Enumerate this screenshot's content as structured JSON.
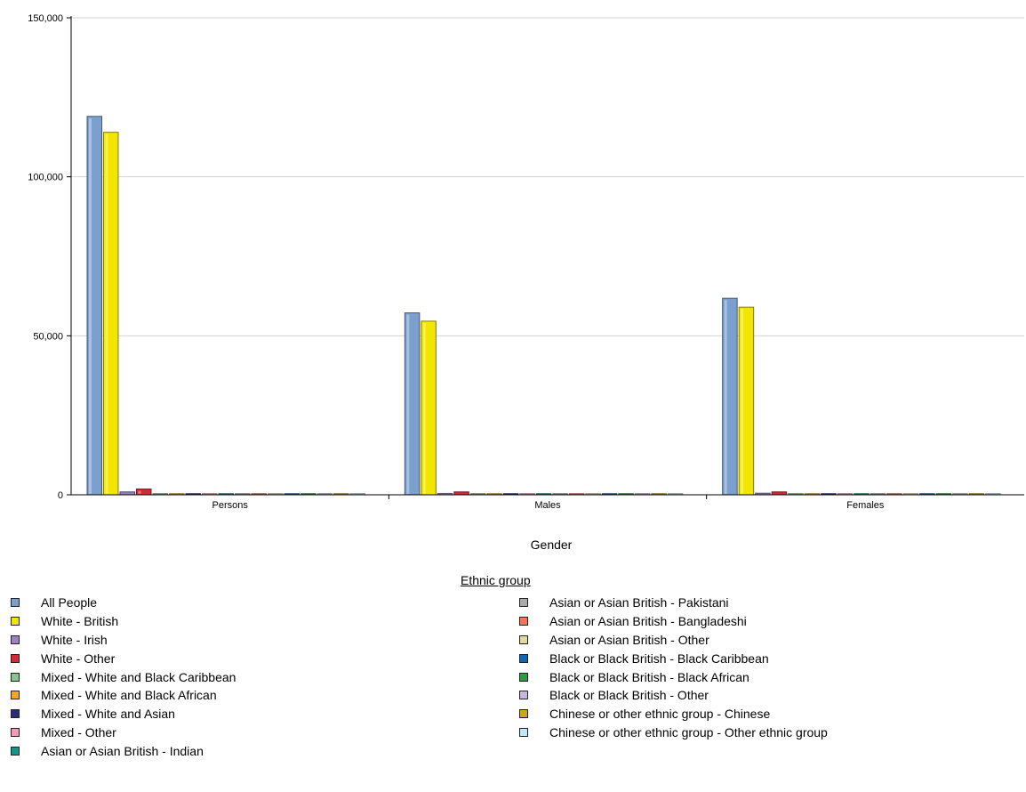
{
  "chart_data": {
    "type": "bar",
    "xlabel": "Gender",
    "ylabel": "",
    "ylim": [
      0,
      150000
    ],
    "yticks": [
      0,
      50000,
      100000,
      150000
    ],
    "ytick_labels": [
      "0",
      "50,000",
      "100,000",
      "150,000"
    ],
    "grid": true,
    "legend_title": "Ethnic group",
    "legend_position": "bottom",
    "categories": [
      "Persons",
      "Males",
      "Females"
    ],
    "series": [
      {
        "name": "All People",
        "color": "#7b9fce",
        "values": [
          119000,
          57200,
          61800
        ]
      },
      {
        "name": "White - British",
        "color": "#f2e600",
        "values": [
          114000,
          54600,
          59000
        ]
      },
      {
        "name": "White - Irish",
        "color": "#9b82c0",
        "values": [
          900,
          400,
          500
        ]
      },
      {
        "name": "White - Other",
        "color": "#d42a35",
        "values": [
          1800,
          900,
          900
        ]
      },
      {
        "name": "Mixed - White and Black Caribbean",
        "color": "#86c68a",
        "values": [
          300,
          150,
          150
        ]
      },
      {
        "name": "Mixed - White and Black African",
        "color": "#f3a623",
        "values": [
          100,
          50,
          50
        ]
      },
      {
        "name": "Mixed - White and Asian",
        "color": "#2e2a7e",
        "values": [
          200,
          100,
          100
        ]
      },
      {
        "name": "Mixed - Other",
        "color": "#f49ab5",
        "values": [
          150,
          80,
          70
        ]
      },
      {
        "name": "Asian or Asian British - Indian",
        "color": "#15958a",
        "values": [
          300,
          150,
          150
        ]
      },
      {
        "name": "Asian or Asian British - Pakistani",
        "color": "#a9a9a9",
        "values": [
          150,
          80,
          70
        ]
      },
      {
        "name": "Asian or Asian British - Bangladeshi",
        "color": "#f07a57",
        "values": [
          100,
          50,
          50
        ]
      },
      {
        "name": "Asian or Asian British - Other",
        "color": "#e0d9a0",
        "values": [
          100,
          50,
          50
        ]
      },
      {
        "name": "Black or Black British - Black Caribbean",
        "color": "#1565b5",
        "values": [
          150,
          70,
          80
        ]
      },
      {
        "name": "Black or Black British - Black African",
        "color": "#2e9b3e",
        "values": [
          150,
          70,
          80
        ]
      },
      {
        "name": "Black or Black British - Other",
        "color": "#c9b7dc",
        "values": [
          50,
          25,
          25
        ]
      },
      {
        "name": "Chinese or other ethnic group - Chinese",
        "color": "#c9a715",
        "values": [
          250,
          120,
          130
        ]
      },
      {
        "name": "Chinese or other ethnic group - Other ethnic group",
        "color": "#bfe8f5",
        "values": [
          300,
          150,
          150
        ]
      }
    ]
  }
}
